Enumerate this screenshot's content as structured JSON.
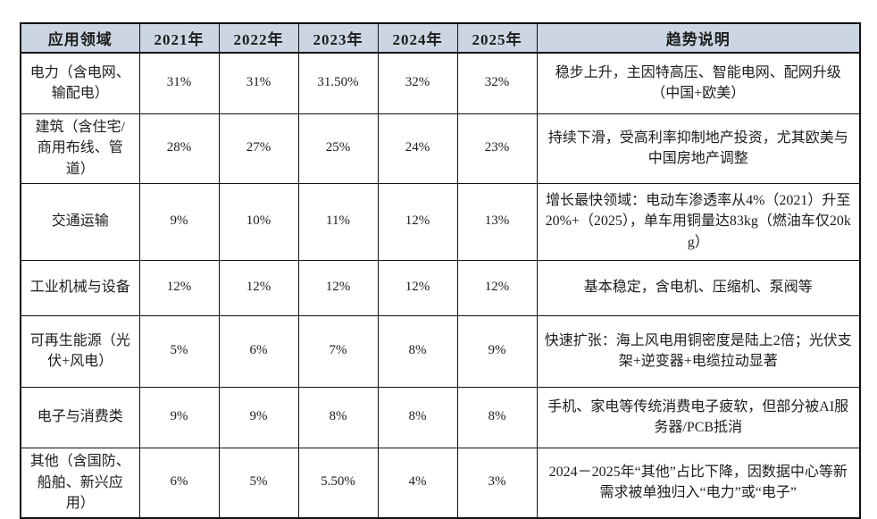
{
  "table": {
    "headers": [
      "应用领域",
      "2021年",
      "2022年",
      "2023年",
      "2024年",
      "2025年",
      "趋势说明"
    ],
    "rows": [
      {
        "area": "电力（含电网、输配电）",
        "values": [
          "31%",
          "31%",
          "31.50%",
          "32%",
          "32%"
        ],
        "trend": "稳步上升，主因特高压、智能电网、配网升级（中国+欧美）"
      },
      {
        "area": "建筑（含住宅/商用布线、管道）",
        "values": [
          "28%",
          "27%",
          "25%",
          "24%",
          "23%"
        ],
        "trend": "持续下滑，受高利率抑制地产投资，尤其欧美与中国房地产调整"
      },
      {
        "area": "交通运输",
        "values": [
          "9%",
          "10%",
          "11%",
          "12%",
          "13%"
        ],
        "trend": "增长最快领域：电动车渗透率从4%（2021）升至20%+（2025），单车用铜量达83kg（燃油车仅20kg）"
      },
      {
        "area": "工业机械与设备",
        "values": [
          "12%",
          "12%",
          "12%",
          "12%",
          "12%"
        ],
        "trend": "基本稳定，含电机、压缩机、泵阀等"
      },
      {
        "area": "可再生能源（光伏+风电）",
        "values": [
          "5%",
          "6%",
          "7%",
          "8%",
          "9%"
        ],
        "trend": "快速扩张：海上风电用铜密度是陆上2倍；光伏支架+逆变器+电缆拉动显著"
      },
      {
        "area": "电子与消费类",
        "values": [
          "9%",
          "9%",
          "8%",
          "8%",
          "8%"
        ],
        "trend": "手机、家电等传统消费电子疲软，但部分被AI服务器/PCB抵消"
      },
      {
        "area": "其他（含国防、船舶、新兴应用）",
        "values": [
          "6%",
          "5%",
          "5.50%",
          "4%",
          "3%"
        ],
        "trend": "2024－2025年“其他”占比下降，因数据中心等新需求被单独归入“电力”或“电子”"
      }
    ]
  },
  "colors": {
    "header_bg": "#ccd6e3",
    "border": "#111111",
    "text": "#1c1c1c"
  }
}
